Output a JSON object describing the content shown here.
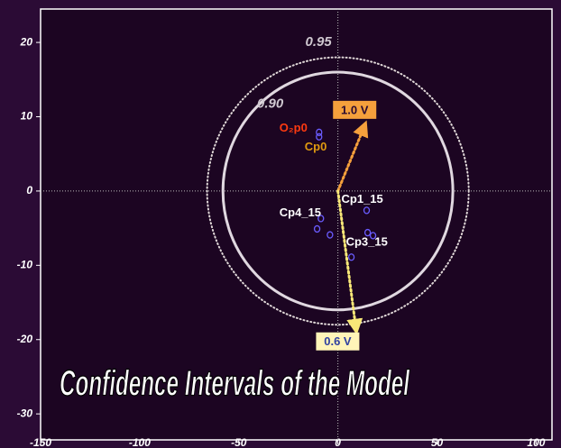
{
  "chart_data": {
    "type": "scatter",
    "title": "Confidence Intervals of the Model",
    "xlim": [
      -150,
      108
    ],
    "ylim": [
      -33.5,
      24.5
    ],
    "xticks": [
      -150,
      -100,
      -50,
      0,
      50,
      100
    ],
    "yticks": [
      -30,
      -20,
      -10,
      0,
      10,
      20
    ],
    "zero_lines": true,
    "ellipses": [
      {
        "label": "0.95",
        "rx": 66,
        "ry": 18,
        "style": "dotted",
        "color": "#e0d8d8"
      },
      {
        "label": "0.90",
        "rx": 58,
        "ry": 16,
        "style": "solid",
        "color": "#e0d8e0"
      }
    ],
    "series": [
      {
        "name": "O₂p0",
        "color": "#6a5cff",
        "label_color": "#ff3a10",
        "x": [
          -9.5
        ],
        "y": [
          7.9
        ]
      },
      {
        "name": "Cp0",
        "color": "#6a5cff",
        "label_color": "#e09a10",
        "x": [
          -9.5
        ],
        "y": [
          7.3
        ]
      },
      {
        "name": "Cp4_15",
        "color": "#6a5cff",
        "label_color": "#ffffff",
        "x": [
          -8.6,
          -10.5,
          -4
        ],
        "y": [
          -3.7,
          -5.1,
          -5.9
        ]
      },
      {
        "name": "Cp1_15",
        "color": "#6a5cff",
        "label_color": "#ffffff",
        "x": [
          14.5,
          15,
          17.7
        ],
        "y": [
          -2.6,
          -5.6,
          -6
        ]
      },
      {
        "name": "Cp3_15",
        "color": "#6a5cff",
        "label_color": "#ffffff",
        "x": [
          6.8
        ],
        "y": [
          -8.9
        ]
      }
    ],
    "arrows": [
      {
        "label": "1.0 V",
        "color": "#f5a03c",
        "box": "#f5a03c",
        "text_color": "#2a0a30",
        "x": [
          0,
          13
        ],
        "y": [
          0,
          8.5
        ]
      },
      {
        "label": "0.6 V",
        "color": "#f8e878",
        "box": "#fff4b8",
        "text_color": "#3040a0",
        "x": [
          0,
          9
        ],
        "y": [
          0,
          -18.3
        ]
      }
    ]
  }
}
